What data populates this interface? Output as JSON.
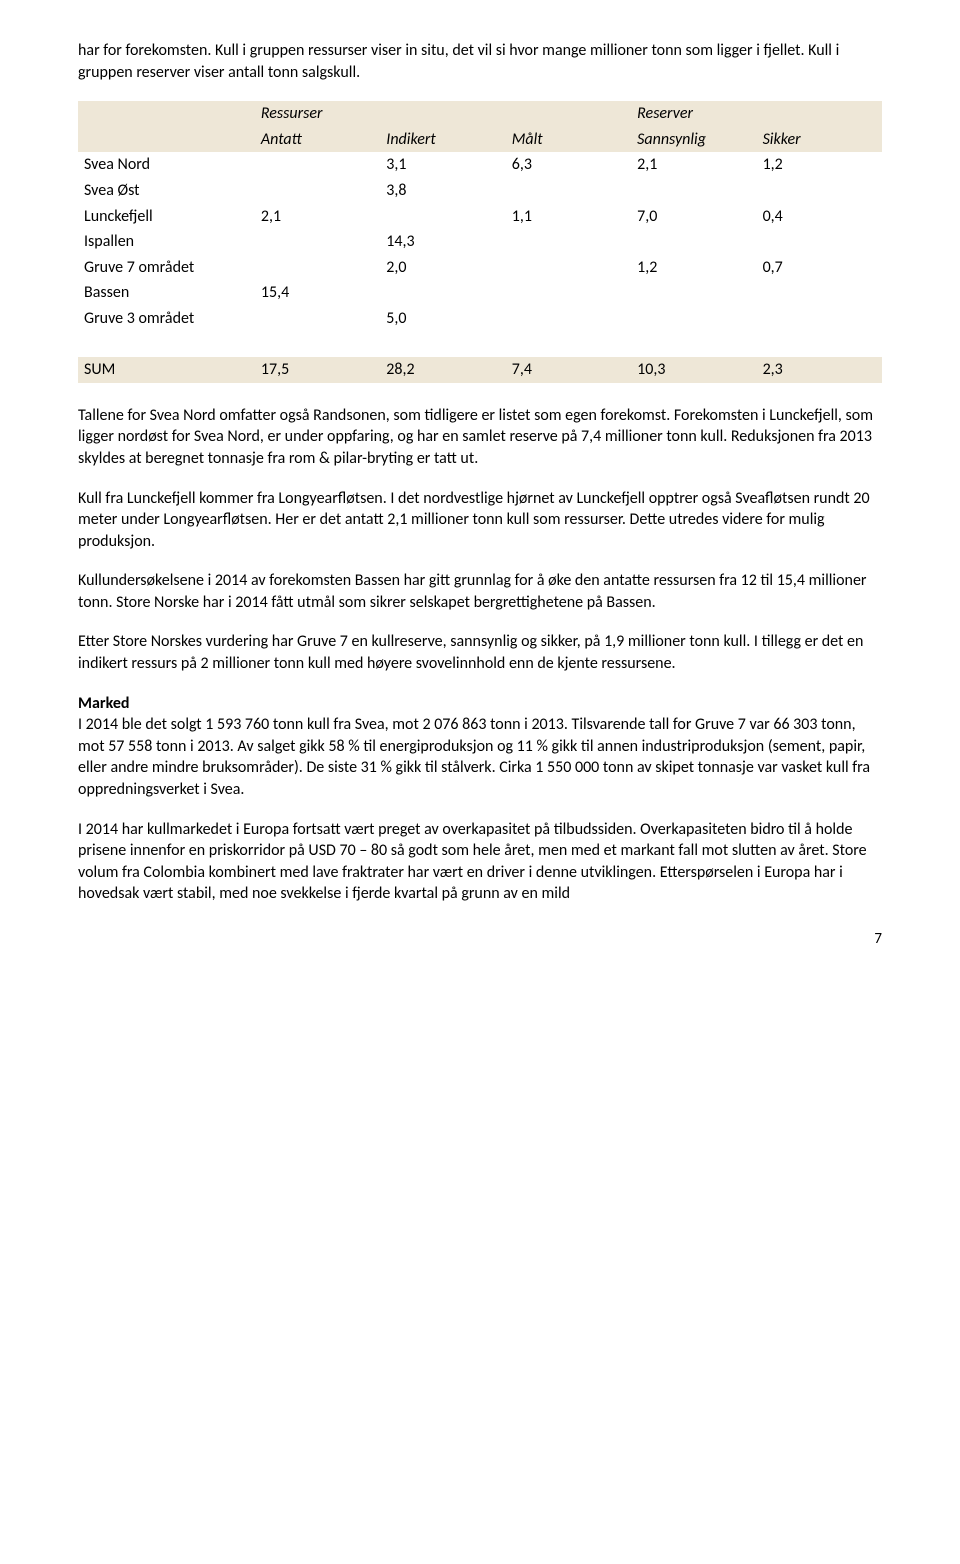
{
  "intro": "har for forekomsten. Kull i gruppen ressurser viser in situ, det vil si hvor mange millioner tonn som ligger i fjellet. Kull i gruppen reserver viser antall tonn salgskull.",
  "table": {
    "bg_header": "#eee7d7",
    "group1": "Ressurser",
    "group2": "Reserver",
    "h1": "Antatt",
    "h2": "Indikert",
    "h3": "Målt",
    "h4": "Sannsynlig",
    "h5": "Sikker",
    "r1": {
      "label": "Svea Nord",
      "c2": "3,1",
      "c3": "6,3",
      "c4": "2,1",
      "c5": "1,2"
    },
    "r2": {
      "label": "Svea Øst",
      "c2": "3,8"
    },
    "r3": {
      "label": "Lunckefjell",
      "c1": "2,1",
      "c3": "1,1",
      "c4": "7,0",
      "c5": "0,4"
    },
    "r4": {
      "label": "Ispallen",
      "c2": "14,3"
    },
    "r5": {
      "label": "Gruve 7 området",
      "c2": "2,0",
      "c4": "1,2",
      "c5": "0,7"
    },
    "r6": {
      "label": "Bassen",
      "c1": "15,4"
    },
    "r7": {
      "label": "Gruve 3 området",
      "c2": "5,0"
    },
    "sum": {
      "label": "SUM",
      "c1": "17,5",
      "c2": "28,2",
      "c3": "7,4",
      "c4": "10,3",
      "c5": "2,3"
    }
  },
  "p1": "Tallene for Svea Nord omfatter også Randsonen, som tidligere er listet som egen forekomst. Forekomsten i Lunckefjell, som ligger nordøst for Svea Nord, er under oppfaring, og har en samlet reserve på 7,4 millioner tonn kull. Reduksjonen fra 2013 skyldes at beregnet tonnasje fra rom & pilar-bryting er tatt ut.",
  "p2": "Kull fra Lunckefjell kommer fra Longyearfløtsen. I det nordvestlige hjørnet av Lunckefjell opptrer også Sveafløtsen rundt 20 meter under Longyearfløtsen. Her er det antatt 2,1 millioner tonn kull som ressurser. Dette utredes videre for mulig produksjon.",
  "p3": "Kullundersøkelsene i 2014 av forekomsten Bassen har gitt grunnlag for å øke den antatte ressursen fra 12 til 15,4 millioner tonn. Store Norske har i 2014 fått utmål som sikrer selskapet bergrettighetene på Bassen.",
  "p4": "Etter Store Norskes vurdering har Gruve 7 en kullreserve, sannsynlig og sikker, på 1,9 millioner tonn kull. I tillegg er det en indikert ressurs på 2 millioner tonn kull med høyere svovelinnhold enn de kjente ressursene.",
  "marked_h": "Marked",
  "p5": "I 2014 ble det solgt 1 593 760 tonn kull fra Svea, mot 2 076 863 tonn i 2013. Tilsvarende tall for Gruve 7 var 66 303 tonn, mot 57 558 tonn i 2013. Av salget gikk 58 % til energiproduksjon og 11 % gikk til annen industriproduksjon (sement, papir, eller andre mindre bruksområder). De siste 31 % gikk til stålverk. Cirka 1 550 000 tonn av skipet tonnasje var vasket kull fra oppredningsverket i Svea.",
  "p6": "I 2014 har kullmarkedet i Europa fortsatt vært preget av overkapasitet på tilbudssiden. Overkapasiteten bidro til å holde prisene innenfor en priskorridor på USD 70 – 80 så godt som hele året, men med et markant fall mot slutten av året. Store volum fra Colombia kombinert med lave fraktrater har vært en driver i denne utviklingen. Etterspørselen i Europa har i hovedsak vært stabil, med noe svekkelse i fjerde kvartal på grunn av en mild",
  "page": "7"
}
